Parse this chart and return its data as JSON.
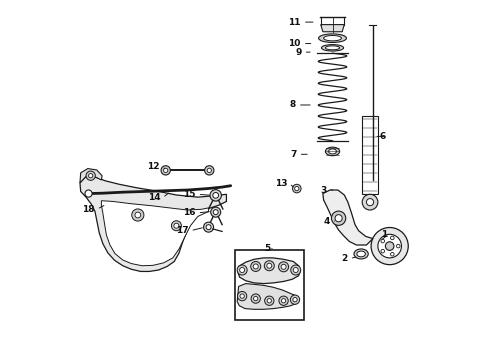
{
  "title": "",
  "bg_color": "#ffffff",
  "line_color": "#1a1a1a",
  "label_color": "#111111",
  "fig_width": 4.9,
  "fig_height": 3.6,
  "dpi": 100
}
